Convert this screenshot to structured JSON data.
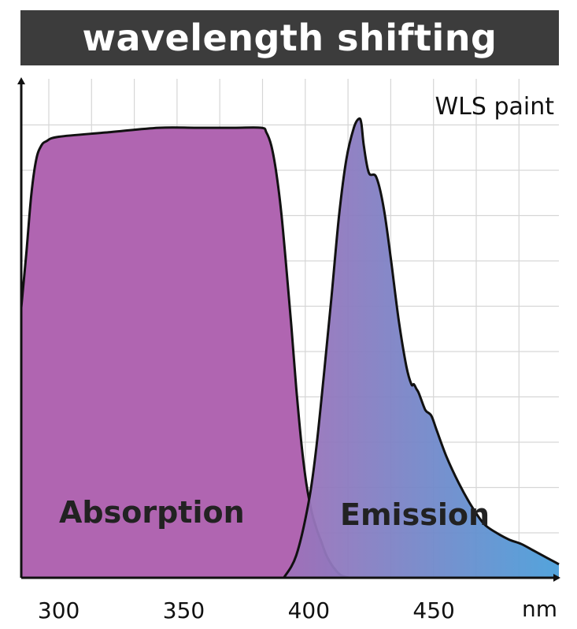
{
  "title": "wavelength shifting",
  "chart_data": {
    "type": "area",
    "title": "wavelength shifting",
    "xlabel": "nm",
    "ylabel": "",
    "xlim": [
      285,
      500
    ],
    "ylim": [
      0,
      1.1
    ],
    "x_ticks": [
      300,
      350,
      400,
      450
    ],
    "grid": true,
    "annotation": "WLS paint",
    "series": [
      {
        "name": "Absorption",
        "color_fill": "#b065b1",
        "x": [
          285,
          287,
          289,
          291,
          293,
          295,
          300,
          320,
          340,
          355,
          370,
          381,
          383,
          385,
          387,
          389,
          391,
          393,
          395,
          397,
          399,
          401,
          403,
          405,
          407,
          409,
          411,
          413,
          416
        ],
        "y": [
          0.6,
          0.72,
          0.85,
          0.93,
          0.96,
          0.97,
          0.98,
          0.99,
          1.0,
          1.0,
          1.0,
          1.0,
          0.99,
          0.96,
          0.9,
          0.81,
          0.69,
          0.56,
          0.42,
          0.3,
          0.21,
          0.15,
          0.11,
          0.08,
          0.05,
          0.03,
          0.015,
          0.005,
          0.0
        ]
      },
      {
        "name": "Emission",
        "color_fill_start": "#a070b8",
        "color_fill_end": "#4a9fda",
        "x": [
          390,
          395,
          400,
          403,
          406,
          409,
          412,
          415,
          418,
          420,
          421,
          422,
          424,
          427,
          430,
          433,
          436,
          439,
          441,
          442,
          443,
          444,
          446,
          447,
          449,
          451,
          455,
          460,
          465,
          470,
          475,
          480,
          485,
          490,
          495,
          500
        ],
        "y": [
          0.0,
          0.05,
          0.17,
          0.29,
          0.45,
          0.62,
          0.8,
          0.93,
          1.0,
          1.02,
          1.01,
          0.96,
          0.9,
          0.89,
          0.82,
          0.7,
          0.57,
          0.47,
          0.43,
          0.43,
          0.42,
          0.41,
          0.38,
          0.37,
          0.36,
          0.33,
          0.27,
          0.21,
          0.16,
          0.12,
          0.1,
          0.085,
          0.075,
          0.06,
          0.045,
          0.03
        ]
      }
    ]
  }
}
